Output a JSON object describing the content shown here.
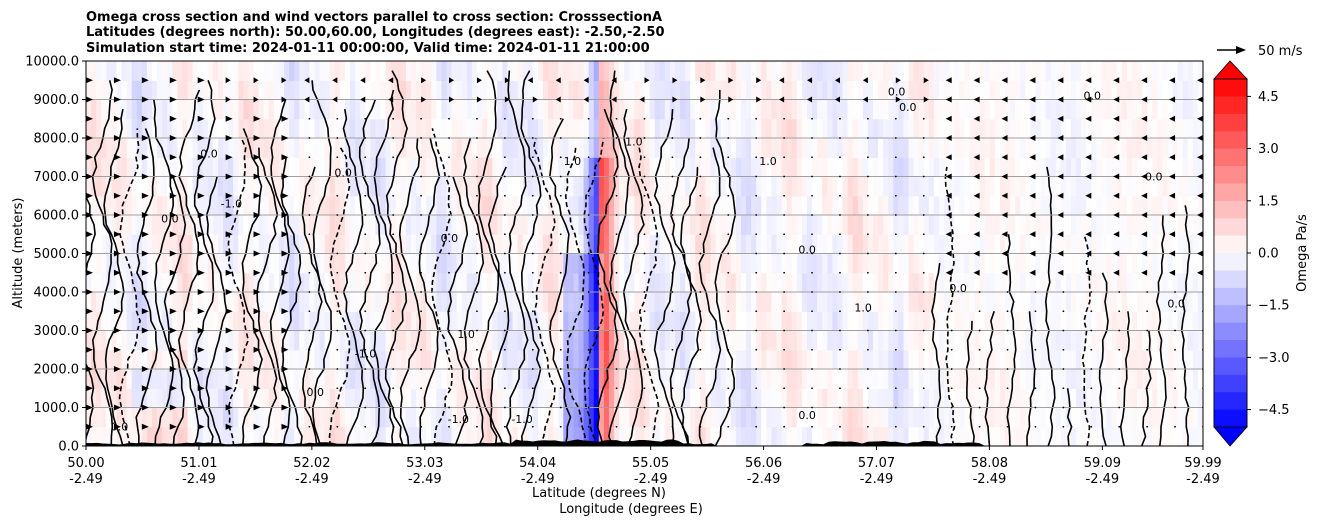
{
  "chart_data": {
    "type": "heatmap",
    "title_lines": [
      "Omega cross section and wind vectors parallel to cross section: CrosssectionA",
      "Latitudes (degrees north): 50.00,60.00, Longitudes (degrees east): -2.50,-2.50",
      "Simulation start time: 2024-01-11 00:00:00, Valid time: 2024-01-11 21:00:00"
    ],
    "ylabel": "Altitude (meters)",
    "xlabel_lines": [
      "Latitude (degrees N)",
      "Longitude (degrees E)"
    ],
    "ylim": [
      0,
      10000
    ],
    "xlim": [
      50.0,
      59.99
    ],
    "y_ticks": [
      0,
      1000,
      2000,
      3000,
      4000,
      5000,
      6000,
      7000,
      8000,
      9000,
      10000
    ],
    "y_tick_labels": [
      "0.0",
      "1000.0",
      "2000.0",
      "3000.0",
      "4000.0",
      "5000.0",
      "6000.0",
      "7000.0",
      "8000.0",
      "9000.0",
      "10000.0"
    ],
    "x_ticks": [
      50.0,
      51.01,
      52.02,
      53.03,
      54.04,
      55.05,
      56.06,
      57.07,
      58.08,
      59.09,
      59.99
    ],
    "x_tick_lat_labels": [
      "50.00",
      "51.01",
      "52.02",
      "53.03",
      "54.04",
      "55.05",
      "56.06",
      "57.07",
      "58.08",
      "59.09",
      "59.99"
    ],
    "x_tick_lon_labels": [
      "-2.49",
      "-2.49",
      "-2.49",
      "-2.49",
      "-2.49",
      "-2.49",
      "-2.49",
      "-2.49",
      "-2.49",
      "-2.49",
      "-2.49"
    ],
    "grid": "horizontal",
    "colorbar": {
      "label": "Omega Pa/s",
      "range": [
        -5.0,
        5.0
      ],
      "tick_values": [
        -4.5,
        -3.0,
        -1.5,
        0.0,
        1.5,
        3.0,
        4.5
      ],
      "tick_labels": [
        "−4.5",
        "−3.0",
        "−1.5",
        "0.0",
        "1.5",
        "3.0",
        "4.5"
      ],
      "low_color": "#0000ff",
      "mid_color": "#ffffff",
      "high_color": "#ff0000",
      "extend": "both"
    },
    "quiver_key": {
      "label": "50 m/s"
    },
    "contour_labels": [
      "0.0",
      "-1.0",
      "1.0"
    ],
    "features": [
      {
        "lat": 54.6,
        "omega_sign": "positive",
        "omega_max": 5.0
      },
      {
        "lat": 54.5,
        "omega_sign": "negative",
        "omega_max": -5.0
      },
      {
        "lat": 54.65,
        "omega_sign": "positive",
        "omega_max": 3.5
      }
    ]
  }
}
